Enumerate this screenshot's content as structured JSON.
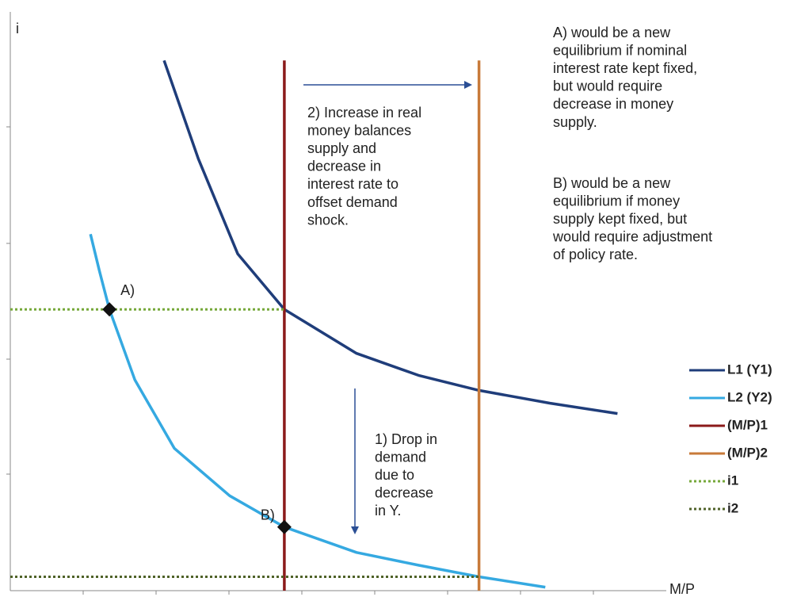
{
  "chart_data": {
    "type": "line",
    "x_label": "M/P",
    "y_label": "i",
    "xlim": [
      0,
      9
    ],
    "ylim": [
      0,
      5
    ],
    "series": [
      {
        "name": "L1 (Y1)",
        "color": "#1f3d7a",
        "x": [
          2.11,
          2.58,
          3.12,
          3.76,
          4.75,
          5.6,
          6.43,
          7.4,
          8.33
        ],
        "values": [
          4.58,
          3.73,
          2.91,
          2.43,
          2.05,
          1.86,
          1.73,
          1.62,
          1.53
        ]
      },
      {
        "name": "L2 (Y2)",
        "color": "#35a9e1",
        "x": [
          1.1,
          1.22,
          1.36,
          1.71,
          2.25,
          3.01,
          3.76,
          4.75,
          5.6,
          6.43,
          7.34
        ],
        "values": [
          3.08,
          2.77,
          2.43,
          1.82,
          1.23,
          0.82,
          0.55,
          0.33,
          0.22,
          0.12,
          0.03
        ]
      },
      {
        "name": "(M/P)1",
        "color": "#8b1a1a",
        "x": [
          3.76,
          3.76
        ],
        "values": [
          0,
          4.58
        ]
      },
      {
        "name": "(M/P)2",
        "color": "#c87a3a",
        "x": [
          6.43,
          6.43
        ],
        "values": [
          0,
          4.58
        ]
      },
      {
        "name": "i1",
        "color": "#76a83a",
        "dashed": true,
        "x": [
          0,
          3.76
        ],
        "values": [
          2.43,
          2.43
        ]
      },
      {
        "name": "i2",
        "color": "#4f6228",
        "dashed": true,
        "x": [
          0,
          6.43
        ],
        "values": [
          0.12,
          0.12
        ]
      }
    ],
    "points": [
      {
        "label": "A)",
        "x": 1.36,
        "y": 2.43
      },
      {
        "label": "B)",
        "x": 3.76,
        "y": 0.55
      }
    ],
    "annotations": [
      [
        "A) would be a new",
        "equilibrium if nominal",
        "interest rate kept fixed,",
        "but would require",
        "decrease in money",
        "supply."
      ],
      [
        "B) would be a new",
        "equilibrium if money",
        "supply kept fixed, but",
        "would require adjustment",
        "of policy rate."
      ],
      [
        "2) Increase in real",
        "money balances",
        "supply and",
        "decrease in",
        "interest rate to",
        "offset demand",
        "shock."
      ],
      [
        "1) Drop in",
        "demand",
        "due to",
        "decrease",
        "in Y."
      ]
    ]
  }
}
